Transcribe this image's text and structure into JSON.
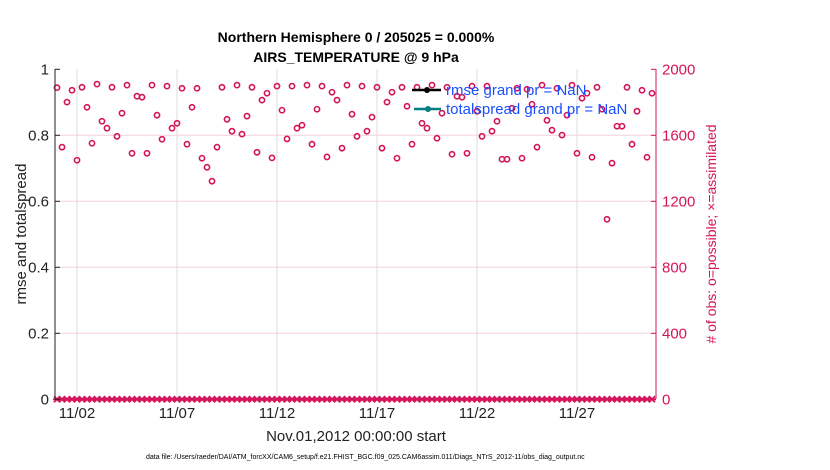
{
  "chart_data": {
    "type": "scatter",
    "title": [
      "Northern Hemisphere 0 / 205025 = 0.000%",
      "AIRS_TEMPERATURE @ 9 hPa"
    ],
    "xlabel": "Nov.01,2012 00:00:00 start",
    "ylabel": "rmse and totalspread",
    "ylabel_right": "# of obs: o=possible; ×=assimilated",
    "footer": "data file: /Users/raeder/DAI/ATM_forcXX/CAM6_setup/f.e21.FHIST_BGC.f09_025.CAM6assim.011/Diags_NTrS_2012-11/obs_diag_output.nc",
    "xlim_days": [
      0,
      30
    ],
    "ylim": [
      0,
      1
    ],
    "ylim_right": [
      0,
      2000
    ],
    "grid": true,
    "x_ticks": [
      {
        "day": 1,
        "label": "11/02"
      },
      {
        "day": 6,
        "label": "11/07"
      },
      {
        "day": 11,
        "label": "11/12"
      },
      {
        "day": 16,
        "label": "11/17"
      },
      {
        "day": 21,
        "label": "11/22"
      },
      {
        "day": 26,
        "label": "11/27"
      }
    ],
    "y_ticks": [
      "0",
      "0.2",
      "0.4",
      "0.6",
      "0.8",
      "1"
    ],
    "y_right_ticks": [
      "0",
      "400",
      "800",
      "1200",
      "1600",
      "2000"
    ],
    "legend": {
      "placement": "top-right",
      "entries": [
        {
          "label": "rmse grand pr = NaN",
          "color": "#000000"
        },
        {
          "label": "totalspread grand pr = NaN",
          "color": "#008080"
        }
      ]
    },
    "time_step_days": 0.25,
    "series": [
      {
        "name": "obs possible",
        "axis": "right",
        "marker": "circle",
        "color": "#D4145A",
        "values": [
          1889,
          1528,
          1801,
          1873,
          1449,
          1891,
          1770,
          1552,
          1910,
          1685,
          1643,
          1891,
          1594,
          1734,
          1904,
          1491,
          1837,
          1831,
          1491,
          1904,
          1722,
          1576,
          1898,
          1643,
          1673,
          1885,
          1546,
          1770,
          1885,
          1461,
          1406,
          1322,
          1528,
          1891,
          1697,
          1625,
          1904,
          1607,
          1716,
          1891,
          1497,
          1813,
          1855,
          1463,
          1898,
          1752,
          1578,
          1898,
          1643,
          1661,
          1904,
          1546,
          1758,
          1898,
          1469,
          1861,
          1813,
          1522,
          1904,
          1728,
          1594,
          1898,
          1625,
          1710,
          1891,
          1522,
          1801,
          1861,
          1461,
          1891,
          1776,
          1546,
          1891,
          1673,
          1643,
          1904,
          1582,
          1734,
          1891,
          1485,
          1837,
          1831,
          1491,
          1898,
          1746,
          1594,
          1898,
          1625,
          1685,
          1455,
          1455,
          1764,
          1885,
          1461,
          1879,
          1788,
          1528,
          1904,
          1691,
          1631,
          1885,
          1601,
          1722,
          1904,
          1491,
          1825,
          1855,
          1467,
          1891,
          1758,
          1091,
          1431,
          1655,
          1655,
          1891,
          1546,
          1746,
          1873,
          1467,
          1855
        ]
      },
      {
        "name": "obs assimilated",
        "axis": "right",
        "marker": "x",
        "color": "#D4145A",
        "value_all": 0,
        "count": 120
      }
    ]
  }
}
